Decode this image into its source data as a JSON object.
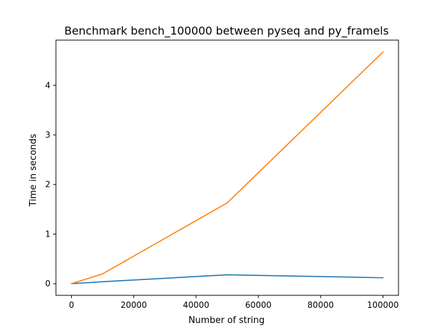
{
  "chart_data": {
    "type": "line",
    "title": "Benchmark bench_100000 between pyseq and py_framels",
    "xlabel": "Number of string",
    "ylabel": "Time in seconds",
    "xlim": [
      -5000,
      105000
    ],
    "ylim": [
      -0.234,
      4.91
    ],
    "x_ticks": [
      0,
      20000,
      40000,
      60000,
      80000,
      100000
    ],
    "x_tick_labels": [
      "0",
      "20000",
      "40000",
      "60000",
      "80000",
      "100000"
    ],
    "y_ticks": [
      0,
      1,
      2,
      3,
      4
    ],
    "y_tick_labels": [
      "0",
      "1",
      "2",
      "3",
      "4"
    ],
    "grid": false,
    "series": [
      {
        "color": "#1f77b4",
        "x": [
          1,
          10000,
          50000,
          100000
        ],
        "y": [
          0.0,
          0.04,
          0.18,
          0.12
        ]
      },
      {
        "color": "#ff7f0e",
        "x": [
          1,
          10000,
          50000,
          100000
        ],
        "y": [
          0.0,
          0.2,
          1.63,
          4.67
        ]
      }
    ]
  }
}
